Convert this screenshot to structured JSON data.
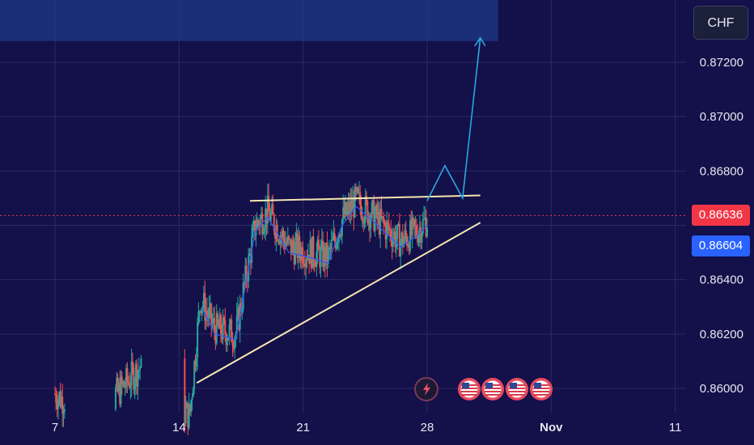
{
  "currency_label": "CHF",
  "current_price": {
    "label": "0.86636",
    "value": 0.86636,
    "color": "#f23645"
  },
  "ma_price": {
    "label": "0.86604",
    "value": 0.86604,
    "color": "#2962ff"
  },
  "colors": {
    "background": "#14104a",
    "up": "#26a69a",
    "down": "#ef5350",
    "ma": "#3a55f0",
    "trendline": "#f5e6b0",
    "projection": "#2aa8e0",
    "zone": "#1e3a8a",
    "grid": "#2a2a62"
  },
  "chart_data": {
    "type": "candlestick",
    "symbol_quote": "CHF",
    "y_ticks": [
      "0.86000",
      "0.86200",
      "0.86400",
      "0.86800",
      "0.87000",
      "0.87200"
    ],
    "y_tick_values": [
      0.86,
      0.862,
      0.864,
      0.868,
      0.87,
      0.872
    ],
    "x_ticks": [
      {
        "label": "7",
        "bold": false
      },
      {
        "label": "14",
        "bold": false
      },
      {
        "label": "21",
        "bold": false
      },
      {
        "label": "28",
        "bold": false
      },
      {
        "label": "Nov",
        "bold": true
      },
      {
        "label": "11",
        "bold": false
      }
    ],
    "x_tick_dates": [
      "2024-10-07",
      "2024-10-14",
      "2024-10-21",
      "2024-10-28",
      "2024-11-04",
      "2024-11-11"
    ],
    "ylim": [
      0.8594,
      0.8733
    ],
    "resistance_line": {
      "x": [
        "2024-10-18",
        "2024-10-31"
      ],
      "y": [
        0.8669,
        0.8671
      ]
    },
    "support_line": {
      "x": [
        "2024-10-15",
        "2024-10-31"
      ],
      "y": [
        0.8602,
        0.8661
      ]
    },
    "projection_path": {
      "x": [
        "2024-10-28",
        "2024-10-29",
        "2024-10-30",
        "2024-10-31"
      ],
      "y": [
        0.8669,
        0.8682,
        0.867,
        0.8729
      ]
    },
    "target_zone": {
      "x": [
        "2024-10-01",
        "2024-11-01"
      ],
      "y": [
        0.8729,
        0.8734
      ]
    },
    "event_markers": [
      {
        "date": "2024-28-00",
        "type": "lightning"
      },
      {
        "date": "2024-10-29",
        "type": "us-flag"
      },
      {
        "date": "2024-10-30",
        "type": "us-flag"
      },
      {
        "date": "2024-10-31",
        "type": "us-flag"
      },
      {
        "date": "2024-11-01",
        "type": "us-flag"
      }
    ],
    "moving_average_last": 0.86604,
    "last_price": 0.86636
  }
}
